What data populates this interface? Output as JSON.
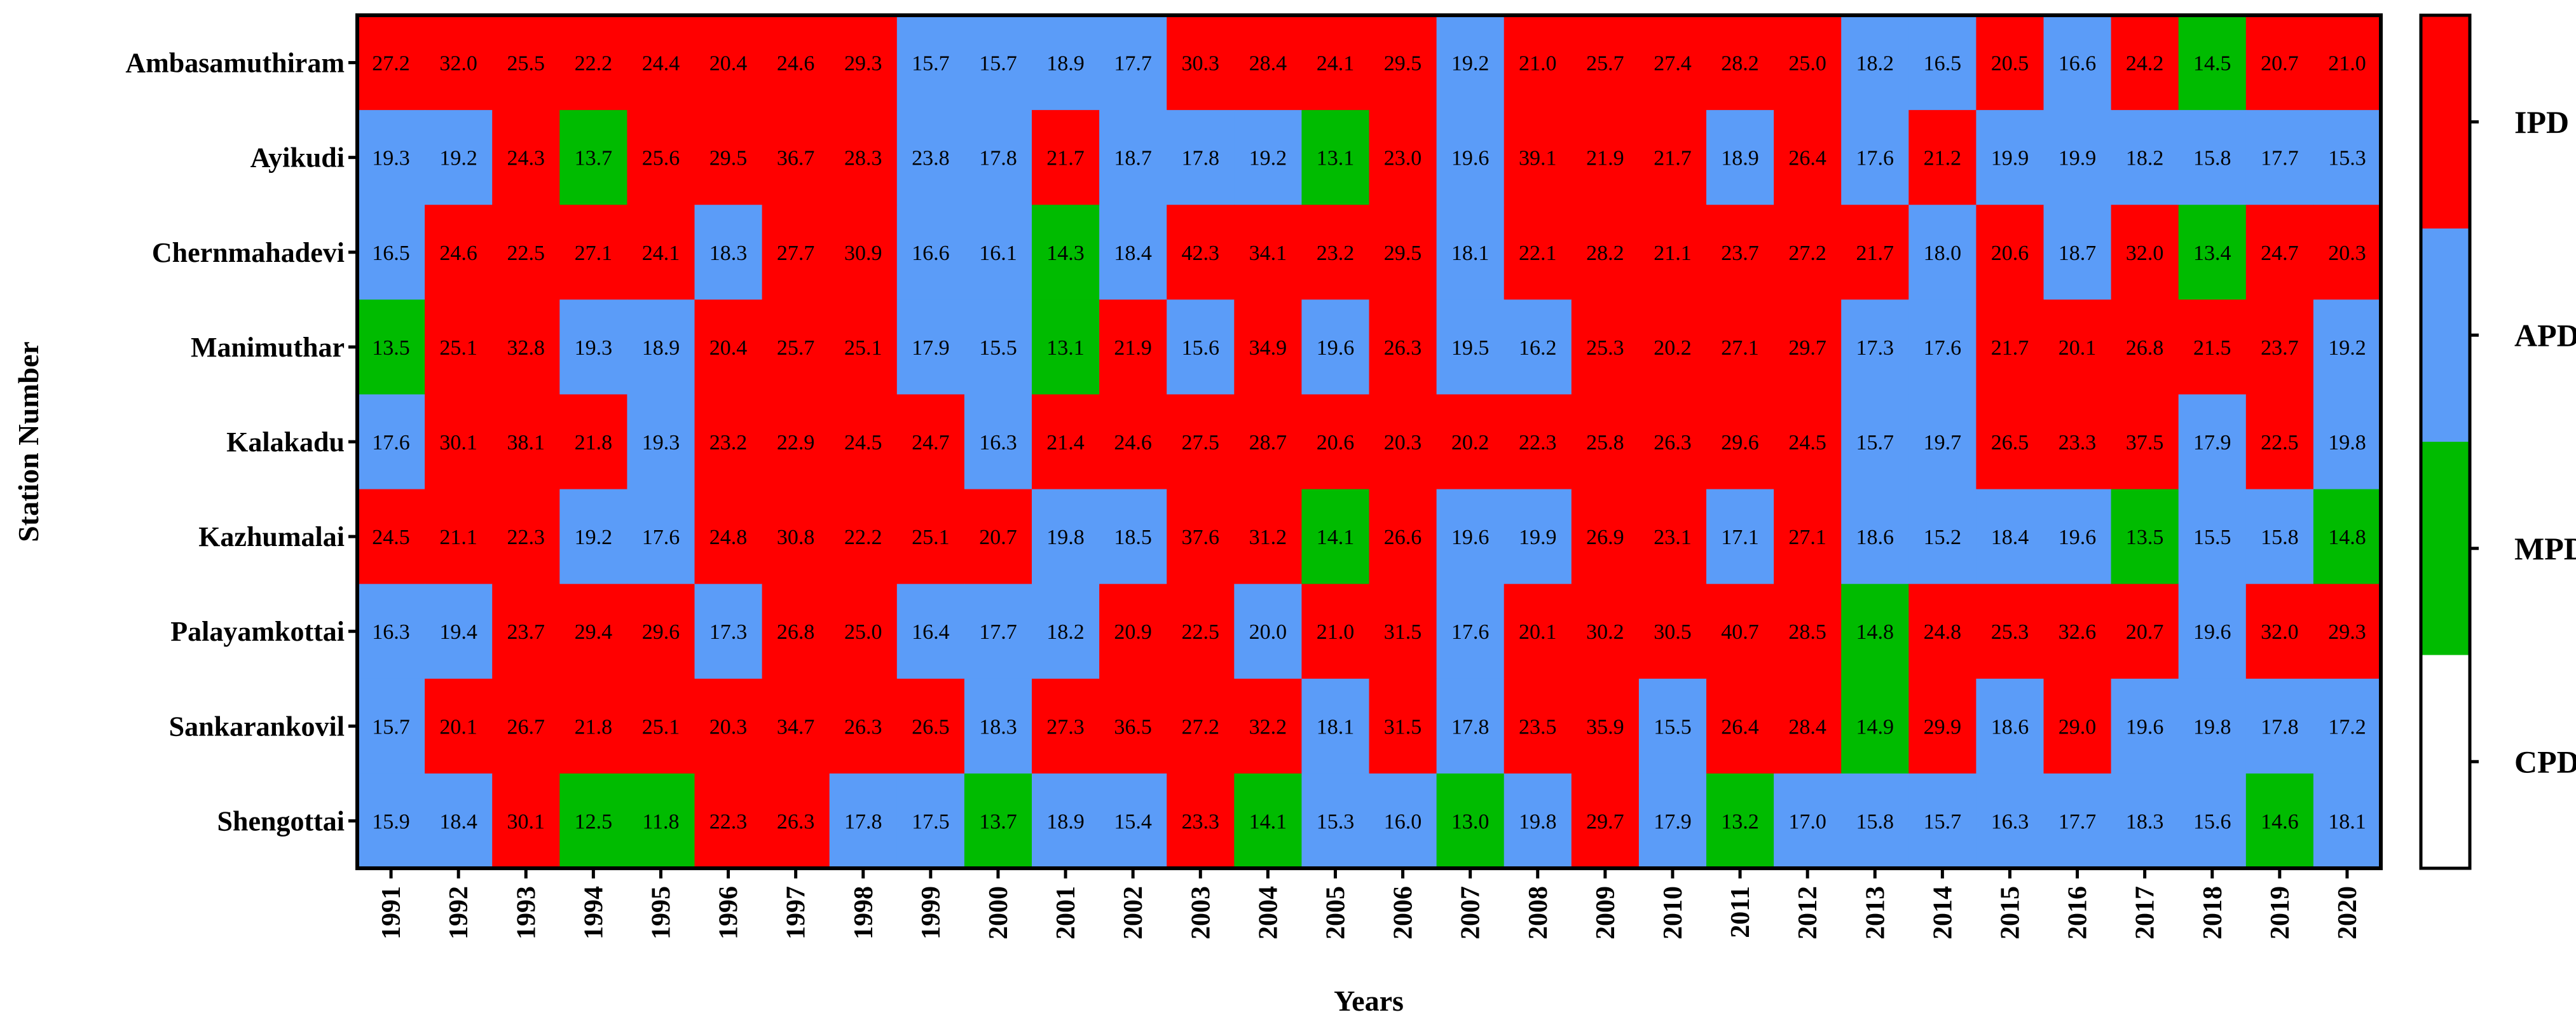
{
  "chart_data": {
    "type": "heatmap",
    "title": "",
    "xlabel": "Years",
    "ylabel": "Station Number",
    "categories": [
      "1991",
      "1992",
      "1993",
      "1994",
      "1995",
      "1996",
      "1997",
      "1998",
      "1999",
      "2000",
      "2001",
      "2002",
      "2003",
      "2004",
      "2005",
      "2006",
      "2007",
      "2008",
      "2009",
      "2010",
      "2011",
      "2012",
      "2013",
      "2014",
      "2015",
      "2016",
      "2017",
      "2018",
      "2019",
      "2020"
    ],
    "stations": [
      "Ambasamuthiram",
      "Ayikudi",
      "Chernmahadevi",
      "Manimuthar",
      "Kalakadu",
      "Kazhumalai",
      "Palayamkottai",
      "Sankarankovil",
      "Shengottai"
    ],
    "values": [
      [
        27.2,
        32.0,
        25.5,
        22.2,
        24.4,
        20.4,
        24.6,
        29.3,
        15.7,
        15.7,
        18.9,
        17.7,
        30.3,
        28.4,
        24.1,
        29.5,
        19.2,
        21.0,
        25.7,
        27.4,
        28.2,
        25.0,
        18.2,
        16.5,
        20.5,
        16.6,
        24.2,
        14.5,
        20.7,
        21.0
      ],
      [
        19.3,
        19.2,
        24.3,
        13.7,
        25.6,
        29.5,
        36.7,
        28.3,
        23.8,
        17.8,
        21.7,
        18.7,
        17.8,
        19.2,
        13.1,
        23.0,
        19.6,
        39.1,
        21.9,
        21.7,
        18.9,
        26.4,
        17.6,
        21.2,
        19.9,
        19.9,
        18.2,
        15.8,
        17.7,
        15.3
      ],
      [
        16.5,
        24.6,
        22.5,
        27.1,
        24.1,
        18.3,
        27.7,
        30.9,
        16.6,
        16.1,
        14.3,
        18.4,
        42.3,
        34.1,
        23.2,
        29.5,
        18.1,
        22.1,
        28.2,
        21.1,
        23.7,
        27.2,
        21.7,
        18.0,
        20.6,
        18.7,
        32.0,
        13.4,
        24.7,
        20.3
      ],
      [
        13.5,
        25.1,
        32.8,
        19.3,
        18.9,
        20.4,
        25.7,
        25.1,
        17.9,
        15.5,
        13.1,
        21.9,
        15.6,
        34.9,
        19.6,
        26.3,
        19.5,
        16.2,
        25.3,
        20.2,
        27.1,
        29.7,
        17.3,
        17.6,
        21.7,
        20.1,
        26.8,
        21.5,
        23.7,
        19.2
      ],
      [
        17.6,
        30.1,
        38.1,
        21.8,
        19.3,
        23.2,
        22.9,
        24.5,
        24.7,
        16.3,
        21.4,
        24.6,
        27.5,
        28.7,
        20.6,
        20.3,
        20.2,
        22.3,
        25.8,
        26.3,
        29.6,
        24.5,
        15.7,
        19.7,
        26.5,
        23.3,
        37.5,
        17.9,
        22.5,
        19.8
      ],
      [
        24.5,
        21.1,
        22.3,
        19.2,
        17.6,
        24.8,
        30.8,
        22.2,
        25.1,
        20.7,
        19.8,
        18.5,
        37.6,
        31.2,
        14.1,
        26.6,
        19.6,
        19.9,
        26.9,
        23.1,
        17.1,
        27.1,
        18.6,
        15.2,
        18.4,
        19.6,
        13.5,
        15.5,
        15.8,
        14.8
      ],
      [
        16.3,
        19.4,
        23.7,
        29.4,
        29.6,
        17.3,
        26.8,
        25.0,
        16.4,
        17.7,
        18.2,
        20.9,
        22.5,
        20.0,
        21.0,
        31.5,
        17.6,
        20.1,
        30.2,
        30.5,
        40.7,
        28.5,
        14.8,
        24.8,
        25.3,
        32.6,
        20.7,
        19.6,
        32.0,
        29.3
      ],
      [
        15.7,
        20.1,
        26.7,
        21.8,
        25.1,
        20.3,
        34.7,
        26.3,
        26.5,
        18.3,
        27.3,
        36.5,
        27.2,
        32.2,
        18.1,
        31.5,
        17.8,
        23.5,
        35.9,
        15.5,
        26.4,
        28.4,
        14.9,
        29.9,
        18.6,
        29.0,
        19.6,
        19.8,
        17.8,
        17.2
      ],
      [
        15.9,
        18.4,
        30.1,
        12.5,
        11.8,
        22.3,
        26.3,
        17.8,
        17.5,
        13.7,
        18.9,
        15.4,
        23.3,
        14.1,
        15.3,
        16.0,
        13.0,
        19.8,
        29.7,
        17.9,
        13.2,
        17.0,
        15.8,
        15.7,
        16.3,
        17.7,
        18.3,
        15.6,
        14.6,
        18.1
      ]
    ],
    "classes": [
      "IIIIIIIIAAAAIIIIAIIIIIAAIAIMII",
      "AAIMIIIIAAIAAAMIAIIIAIAIAAAAAA",
      "AIIIIAIIAAMAIIIIAIIIIIIAIAIMII",
      "MIIAAIIIAAMIAIAIAAIIIIAAIIIIIA",
      "AIIIAIIIIAIIIIIIIIIIIIAAIIIAIA",
      "IIIAAIIIIIAAIIMIAAIIAIAAAAMAAM",
      "AAIIIAIIAAAIIAIIAIIIIIMIIIIAII",
      "AIIIIIIIIAIIIIAIAIIAIIMIAIAAAA",
      "AAIMMIIAAMAAIMAAMAIAMAAAAAAAMA"
    ],
    "color_scale": {
      "IPD": "#ff0000",
      "APD": "#5b9cf8",
      "MPD": "#00bb00",
      "CPD": "#ffffff"
    },
    "legend": {
      "entries": [
        "IPD",
        "APD",
        "MPD",
        "CPD"
      ],
      "placement": "right"
    },
    "grid": false
  }
}
